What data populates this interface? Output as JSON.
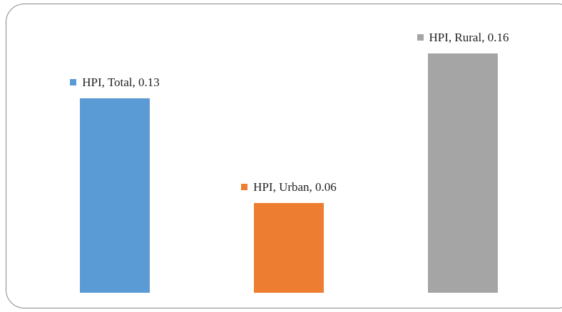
{
  "chart_data": {
    "type": "bar",
    "values": [
      0.13,
      0.06,
      0.16
    ],
    "value_labels": [
      "HPI, Total, 0.13",
      "HPI, Urban, 0.06",
      "HPI, Rural, 0.16"
    ],
    "colors": [
      "#5b9bd5",
      "#ed7d31",
      "#a5a5a5"
    ],
    "ylim": [
      0,
      0.18
    ]
  }
}
